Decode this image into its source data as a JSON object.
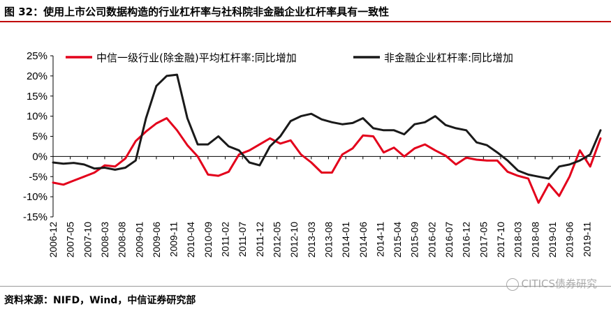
{
  "figure": {
    "title": "图 32：使用上市公司数据构造的行业杠杆率与社科院非金融企业杠杆率具有一致性",
    "source": "资料来源：NIFD，Wind，中信证券研究部",
    "watermark": "CITICS债券研究"
  },
  "colors": {
    "title_rule": "#c00000",
    "series_red": "#e3001b",
    "series_black": "#1a1a1a"
  },
  "chart_data": {
    "type": "line",
    "xlabel": "",
    "ylabel": "",
    "ylim": [
      -15,
      25
    ],
    "y_unit": "%",
    "y_ticks": [
      "25%",
      "20%",
      "15%",
      "10%",
      "5%",
      "0%",
      "-5%",
      "-10%",
      "-15%"
    ],
    "x_tick_labels": [
      "2006-12",
      "2007-05",
      "2007-10",
      "2008-03",
      "2008-08",
      "2009-01",
      "2009-06",
      "2009-11",
      "2010-04",
      "2010-09",
      "2011-02",
      "2011-07",
      "2011-12",
      "2012-05",
      "2012-10",
      "2013-03",
      "2013-08",
      "2014-01",
      "2014-06",
      "2014-11",
      "2015-04",
      "2015-09",
      "2016-02",
      "2016-07",
      "2016-12",
      "2017-05",
      "2017-10",
      "2018-03",
      "2018-08",
      "2019-01",
      "2019-06",
      "2019-11"
    ],
    "x_range": [
      "2006-12",
      "2020-03"
    ],
    "grid": false,
    "legend_position": "top",
    "series": [
      {
        "name": "中信一级行业(除金融)平均杠杆率:同比增加",
        "color": "#e3001b",
        "x": [
          "2006-12",
          "2007-03",
          "2007-06",
          "2007-09",
          "2007-12",
          "2008-03",
          "2008-06",
          "2008-09",
          "2008-12",
          "2009-03",
          "2009-06",
          "2009-09",
          "2009-12",
          "2010-03",
          "2010-06",
          "2010-09",
          "2010-12",
          "2011-03",
          "2011-06",
          "2011-09",
          "2011-12",
          "2012-03",
          "2012-06",
          "2012-09",
          "2012-12",
          "2013-03",
          "2013-06",
          "2013-09",
          "2013-12",
          "2014-03",
          "2014-06",
          "2014-09",
          "2014-12",
          "2015-03",
          "2015-06",
          "2015-09",
          "2015-12",
          "2016-03",
          "2016-06",
          "2016-09",
          "2016-12",
          "2017-03",
          "2017-06",
          "2017-09",
          "2017-12",
          "2018-03",
          "2018-06",
          "2018-09",
          "2018-12",
          "2019-03",
          "2019-06",
          "2019-09",
          "2019-12",
          "2020-03"
        ],
        "y": [
          -6.5,
          -7.0,
          -6.0,
          -5.0,
          -4.0,
          -2.2,
          -2.5,
          -0.5,
          3.8,
          6.2,
          8.2,
          9.5,
          6.5,
          2.8,
          0.0,
          -4.5,
          -4.8,
          -3.8,
          0.5,
          1.5,
          3.0,
          4.5,
          3.2,
          4.0,
          0.5,
          -1.5,
          -4.0,
          -4.0,
          0.5,
          2.0,
          5.2,
          5.0,
          1.0,
          2.2,
          0.0,
          2.0,
          3.0,
          1.5,
          0.2,
          -2.0,
          -0.3,
          -0.8,
          -1.0,
          -1.0,
          -3.8,
          -4.8,
          -5.5,
          -11.5,
          -6.8,
          -9.8,
          -5.0,
          1.5,
          -2.5,
          4.5
        ]
      },
      {
        "name": "非金融企业杠杆率:同比增加",
        "color": "#1a1a1a",
        "x": [
          "2006-12",
          "2007-03",
          "2007-06",
          "2007-09",
          "2007-12",
          "2008-03",
          "2008-06",
          "2008-09",
          "2008-12",
          "2009-03",
          "2009-06",
          "2009-09",
          "2009-12",
          "2010-03",
          "2010-06",
          "2010-09",
          "2010-12",
          "2011-03",
          "2011-06",
          "2011-09",
          "2011-12",
          "2012-03",
          "2012-06",
          "2012-09",
          "2012-12",
          "2013-03",
          "2013-06",
          "2013-09",
          "2013-12",
          "2014-03",
          "2014-06",
          "2014-09",
          "2014-12",
          "2015-03",
          "2015-06",
          "2015-09",
          "2015-12",
          "2016-03",
          "2016-06",
          "2016-09",
          "2016-12",
          "2017-03",
          "2017-06",
          "2017-09",
          "2017-12",
          "2018-03",
          "2018-06",
          "2018-09",
          "2018-12",
          "2019-03",
          "2019-06",
          "2019-09",
          "2019-12",
          "2020-03"
        ],
        "y": [
          -1.5,
          -1.8,
          -1.6,
          -2.0,
          -3.0,
          -2.8,
          -3.3,
          -2.8,
          -1.0,
          9.5,
          17.5,
          20.0,
          20.3,
          9.5,
          3.0,
          3.0,
          5.0,
          2.5,
          1.5,
          -1.5,
          -2.2,
          2.5,
          5.0,
          8.8,
          10.0,
          10.6,
          9.2,
          8.5,
          8.0,
          8.3,
          9.5,
          7.0,
          6.5,
          6.5,
          5.5,
          8.0,
          8.5,
          10.0,
          7.8,
          7.0,
          6.5,
          3.5,
          2.8,
          1.0,
          -1.0,
          -3.5,
          -4.5,
          -5.0,
          -5.5,
          -2.5,
          -2.0,
          -1.0,
          0.5,
          6.5
        ]
      }
    ]
  }
}
